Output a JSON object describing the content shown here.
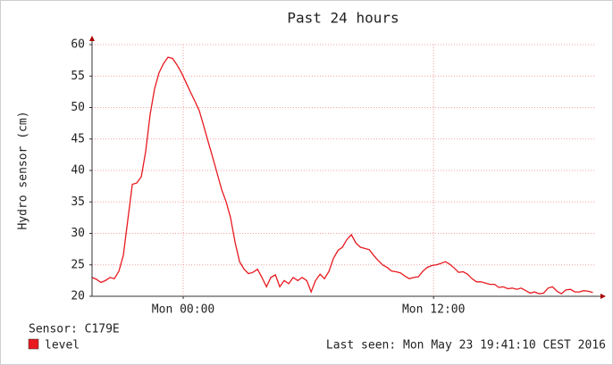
{
  "chart_data": {
    "type": "line",
    "title": "Past 24 hours",
    "ylabel": "Hydro sensor (cm)",
    "sensor": "Sensor: C179E",
    "last_seen": "Last seen: Mon May 23 19:41:10 CEST 2016",
    "xlim": [
      -4.37,
      19.7
    ],
    "ylim": [
      20,
      60
    ],
    "xticks": [
      {
        "value": 0,
        "label": "Mon 00:00"
      },
      {
        "value": 12,
        "label": "Mon 12:00"
      }
    ],
    "yticks": [
      20,
      25,
      30,
      35,
      40,
      45,
      50,
      55,
      60
    ],
    "grid": true,
    "x": [
      -4.37,
      -4.16,
      -3.94,
      -3.73,
      -3.51,
      -3.3,
      -3.08,
      -2.87,
      -2.66,
      -2.44,
      -2.23,
      -2.01,
      -1.8,
      -1.58,
      -1.37,
      -1.16,
      -0.94,
      -0.73,
      -0.51,
      -0.3,
      -0.08,
      0.13,
      0.34,
      0.56,
      0.77,
      0.99,
      1.2,
      1.42,
      1.63,
      1.84,
      2.06,
      2.27,
      2.49,
      2.7,
      2.92,
      3.13,
      3.34,
      3.56,
      3.77,
      3.99,
      4.2,
      4.42,
      4.63,
      4.84,
      5.06,
      5.27,
      5.49,
      5.7,
      5.92,
      6.13,
      6.34,
      6.56,
      6.77,
      6.99,
      7.2,
      7.42,
      7.63,
      7.84,
      8.06,
      8.27,
      8.49,
      8.7,
      8.92,
      9.13,
      9.34,
      9.56,
      9.77,
      9.99,
      10.2,
      10.42,
      10.63,
      10.84,
      11.06,
      11.27,
      11.49,
      11.7,
      11.92,
      12.13,
      12.34,
      12.56,
      12.77,
      12.99,
      13.2,
      13.42,
      13.63,
      13.84,
      14.06,
      14.27,
      14.49,
      14.7,
      14.92,
      15.13,
      15.34,
      15.56,
      15.77,
      15.99,
      16.2,
      16.42,
      16.63,
      16.84,
      17.06,
      17.27,
      17.49,
      17.7,
      17.92,
      18.13,
      18.34,
      18.56,
      18.77,
      18.99,
      19.2,
      19.42,
      19.63
    ],
    "series": [
      {
        "name": "level",
        "color": "#e8191f",
        "values": [
          23,
          22.7,
          22.2,
          22.5,
          23,
          22.8,
          24,
          26.5,
          32,
          37.8,
          38,
          39,
          43,
          49,
          53,
          55.5,
          57,
          58,
          57.8,
          56.8,
          55.5,
          54,
          52.5,
          51,
          49.5,
          47,
          44.5,
          42,
          39.5,
          37,
          35,
          32.5,
          28.5,
          25.5,
          24.3,
          23.6,
          23.8,
          24.3,
          23,
          21.5,
          23,
          23.4,
          21.5,
          22.5,
          22,
          23,
          22.5,
          23,
          22.5,
          20.7,
          22.5,
          23.5,
          22.8,
          24,
          26,
          27.3,
          27.8,
          29,
          29.8,
          28.5,
          27.8,
          27.6,
          27.4,
          26.5,
          25.7,
          25,
          24.6,
          24,
          23.9,
          23.7,
          23.2,
          22.8,
          23,
          23.1,
          24,
          24.6,
          24.9,
          25,
          25.2,
          25.5,
          25.1,
          24.5,
          23.8,
          23.9,
          23.5,
          22.8,
          22.3,
          22.3,
          22.1,
          21.9,
          21.9,
          21.4,
          21.5,
          21.2,
          21.3,
          21.1,
          21.3,
          20.9,
          20.5,
          20.7,
          20.4,
          20.5,
          21.3,
          21.5,
          20.8,
          20.4,
          21,
          21.1,
          20.7,
          20.7,
          20.9,
          20.8,
          20.6
        ]
      }
    ]
  }
}
